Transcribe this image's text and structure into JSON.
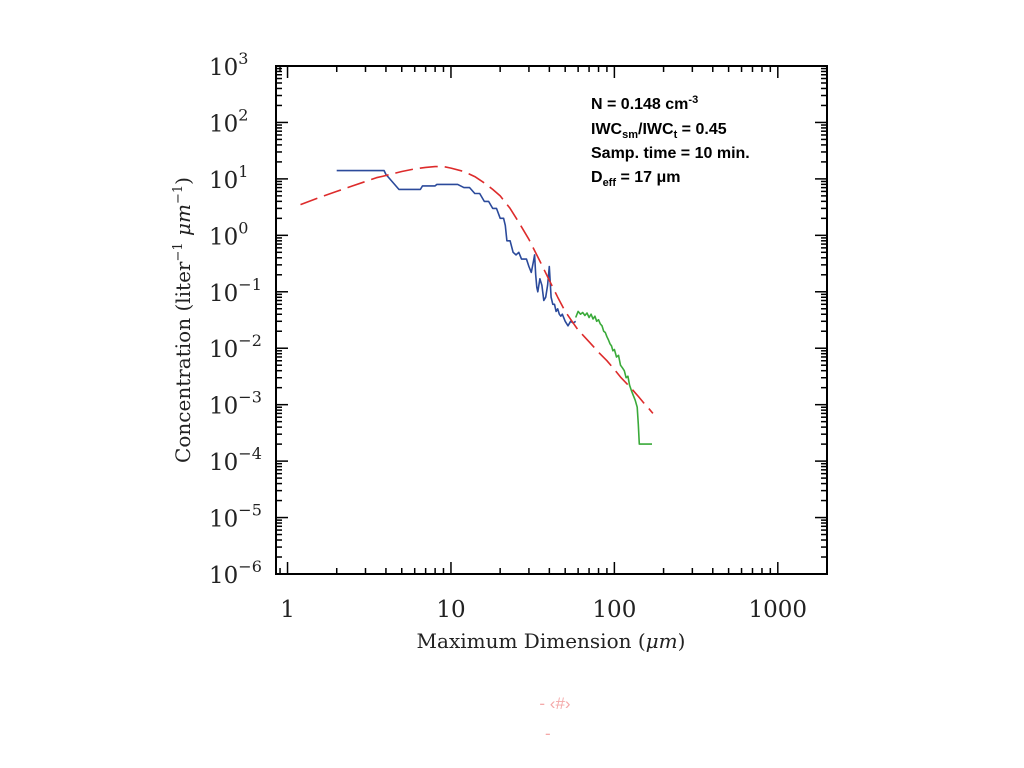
{
  "chart_data": {
    "type": "line",
    "xlabel_prefix": "Maximum Dimension (",
    "xlabel_unit": "μm",
    "xlabel_suffix": ")",
    "ylabel_prefix": "Concentration (liter",
    "ylabel_unit": "μm",
    "ylabel_suffix": ")",
    "xscale": "log",
    "yscale": "log",
    "xlim": [
      0.85,
      2000
    ],
    "ylim": [
      1e-06,
      1000
    ],
    "x_ticks": [
      1,
      10,
      100,
      1000
    ],
    "x_tick_labels": [
      "1",
      "10",
      "100",
      "1000"
    ],
    "y_tick_exponents": [
      -6,
      -5,
      -4,
      -3,
      -2,
      -1,
      0,
      1,
      2,
      3
    ],
    "y_tick_base": "10",
    "grid": false,
    "annotations": [
      {
        "text": "N = 0.148 cm",
        "sup": "-3"
      },
      {
        "text": "IWC",
        "sub1": "sm",
        "mid": "/IWC",
        "sub2": "t",
        "tail": " = 0.45"
      },
      {
        "text": "Samp. time = 10 min."
      },
      {
        "text": "D",
        "sub1": "eff",
        "tail": " = 17 μm"
      }
    ],
    "series": [
      {
        "color": "#2b4a9b",
        "style": "solid",
        "x": [
          2,
          3.9,
          4,
          4.8,
          5,
          6.5,
          6.7,
          7,
          7.3,
          8,
          8.2,
          9,
          11,
          12,
          13,
          14,
          15,
          16,
          17,
          18,
          19,
          20,
          21,
          21.5,
          22,
          23,
          24,
          25,
          26,
          27,
          28,
          29,
          30,
          31,
          32,
          32.5,
          33,
          33.5,
          34,
          35,
          36,
          37,
          38,
          39,
          40,
          40.5,
          41,
          42,
          43,
          44,
          45,
          46,
          47,
          48,
          50,
          52,
          54,
          56,
          58
        ],
        "y": [
          14,
          14,
          12,
          6.5,
          6.5,
          6.5,
          7.5,
          7.5,
          7.5,
          7.5,
          8,
          8,
          8,
          7,
          7,
          5.5,
          5.5,
          4,
          4,
          3,
          3,
          2,
          2,
          1.5,
          0.8,
          0.8,
          0.5,
          0.45,
          0.5,
          0.38,
          0.38,
          0.38,
          0.28,
          0.22,
          0.35,
          0.45,
          0.2,
          0.12,
          0.1,
          0.17,
          0.13,
          0.07,
          0.08,
          0.13,
          0.28,
          0.15,
          0.08,
          0.06,
          0.06,
          0.045,
          0.05,
          0.04,
          0.037,
          0.04,
          0.03,
          0.025,
          0.03,
          0.028,
          0.03
        ]
      },
      {
        "color": "#3aaa3a",
        "style": "solid",
        "x": [
          58,
          60,
          62,
          64,
          66,
          68,
          70,
          72,
          74,
          76,
          78,
          80,
          82,
          84,
          86,
          88,
          90,
          92,
          94,
          96,
          98,
          100,
          103,
          106,
          109,
          112,
          115,
          118,
          121,
          124,
          127,
          130,
          134,
          138,
          140,
          142,
          145,
          150,
          160,
          170
        ],
        "y": [
          0.035,
          0.045,
          0.04,
          0.043,
          0.038,
          0.042,
          0.035,
          0.04,
          0.033,
          0.037,
          0.03,
          0.032,
          0.027,
          0.025,
          0.02,
          0.019,
          0.016,
          0.014,
          0.012,
          0.011,
          0.009,
          0.0095,
          0.007,
          0.0075,
          0.005,
          0.0045,
          0.004,
          0.003,
          0.0032,
          0.0022,
          0.0018,
          0.0015,
          0.0012,
          0.0009,
          0.00045,
          0.0002,
          0.0002,
          0.0002,
          0.0002,
          0.0002
        ]
      },
      {
        "color": "#dd2b2b",
        "style": "dashed",
        "x": [
          1.2,
          1.6,
          2,
          2.5,
          3,
          3.5,
          4,
          5,
          6,
          7,
          8,
          9,
          10,
          12,
          14,
          16,
          18,
          20,
          23,
          26,
          30,
          35,
          40,
          45,
          50,
          55,
          60,
          70,
          80,
          90,
          100,
          110,
          120,
          130,
          140,
          150,
          160,
          172
        ],
        "y": [
          3.5,
          4.8,
          6,
          7.5,
          9,
          10.5,
          11.5,
          13.5,
          15,
          16,
          16.5,
          16.5,
          15.5,
          13.5,
          11,
          8.5,
          6.5,
          5,
          3,
          1.7,
          0.85,
          0.35,
          0.16,
          0.08,
          0.045,
          0.03,
          0.021,
          0.013,
          0.0085,
          0.006,
          0.0042,
          0.003,
          0.0023,
          0.0018,
          0.0014,
          0.0011,
          0.0009,
          0.0007
        ]
      }
    ]
  },
  "slide": {
    "number_text": "- ‹#› ",
    "dash_text": "-"
  }
}
